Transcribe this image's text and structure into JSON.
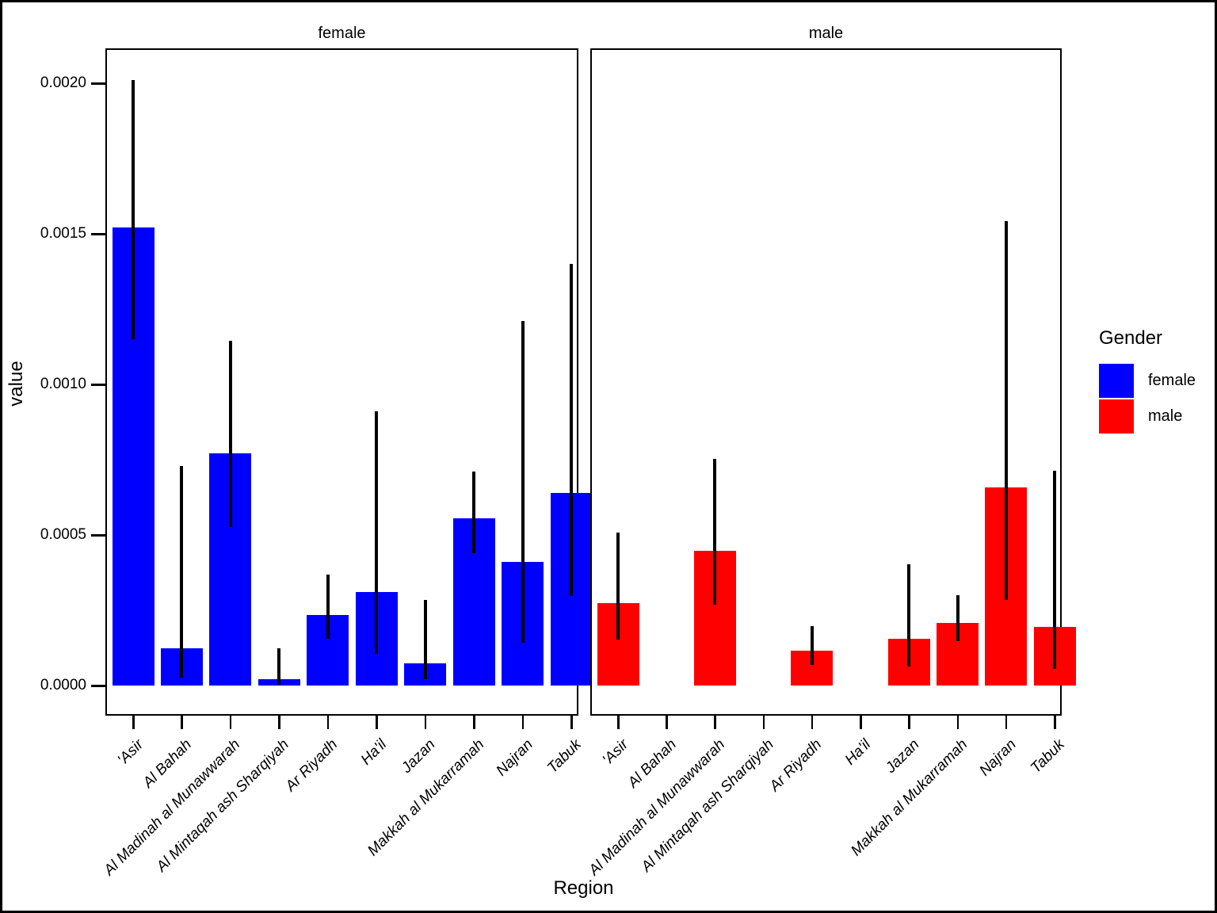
{
  "chart_data": {
    "type": "bar",
    "title": "",
    "xlabel": "Region",
    "ylabel": "value",
    "facets": [
      "female",
      "male"
    ],
    "categories": [
      "'Asir",
      "Al Bahah",
      "Al Madinah al Munawwarah",
      "Al Mintaqah ash Sharqiyah",
      "Ar Riyadh",
      "Ha'il",
      "Jazan",
      "Makkah al Mukarramah",
      "Najran",
      "Tabuk"
    ],
    "series": [
      {
        "name": "female",
        "color": "#0000FF",
        "values": [
          0.00152,
          0.000125,
          0.00077,
          2e-05,
          0.000235,
          0.00031,
          7.5e-05,
          0.000555,
          0.00041,
          0.00064
        ],
        "err_low": [
          0.00115,
          2.5e-05,
          0.000525,
          3e-06,
          0.000155,
          0.000105,
          2.2e-05,
          0.00044,
          0.000143,
          0.000297
        ],
        "err_high": [
          0.00201,
          0.00073,
          0.001145,
          0.000125,
          0.000368,
          0.00091,
          0.000285,
          0.00071,
          0.00121,
          0.0014
        ]
      },
      {
        "name": "male",
        "color": "#FF0000",
        "values": [
          0.000275,
          0,
          0.000447,
          0,
          0.000117,
          0,
          0.000155,
          0.000208,
          0.000659,
          0.000196
        ],
        "err_low": [
          0.000152,
          null,
          0.000268,
          null,
          6.9e-05,
          null,
          6.3e-05,
          0.000148,
          0.000284,
          5.6e-05
        ],
        "err_high": [
          0.000508,
          null,
          0.000752,
          null,
          0.000198,
          null,
          0.000402,
          0.0003,
          0.001543,
          0.000712
        ]
      }
    ],
    "yticks": [
      {
        "value": 0.0,
        "label": "0.0000"
      },
      {
        "value": 0.0005,
        "label": "0.0005"
      },
      {
        "value": 0.001,
        "label": "0.0010"
      },
      {
        "value": 0.0015,
        "label": "0.0015"
      },
      {
        "value": 0.002,
        "label": "0.0020"
      }
    ],
    "ylim": [
      0,
      0.00212
    ],
    "grid": false,
    "legend_position": "right",
    "legend": {
      "title": "Gender",
      "entries": [
        {
          "label": "female",
          "color": "#0000FF"
        },
        {
          "label": "male",
          "color": "#FF0000"
        }
      ]
    }
  }
}
